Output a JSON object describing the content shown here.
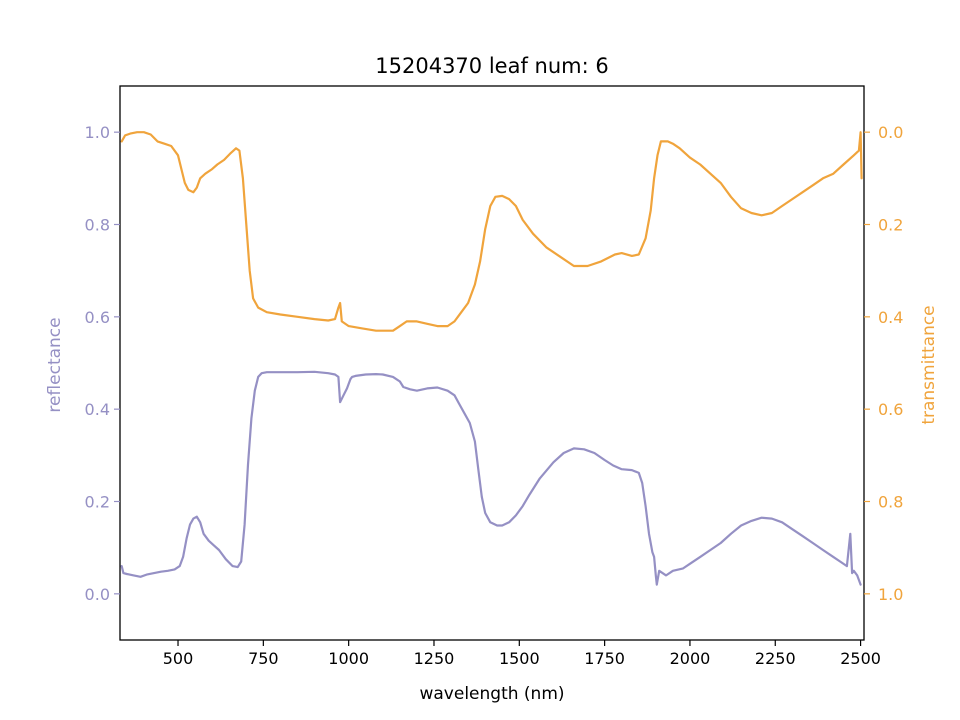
{
  "chart_data": {
    "type": "line",
    "title": "15204370 leaf num: 6",
    "xlabel": "wavelength (nm)",
    "xlim": [
      330,
      2510
    ],
    "xticks": [
      500,
      750,
      1000,
      1250,
      1500,
      1750,
      2000,
      2250,
      2500
    ],
    "grid": false,
    "legend": "none",
    "left_axis": {
      "label": "reflectance",
      "color": "#9590c4",
      "ylim": [
        -0.1,
        1.1
      ],
      "ticks": [
        0.0,
        0.2,
        0.4,
        0.6,
        0.8,
        1.0
      ],
      "tick_labels": [
        "0.0",
        "0.2",
        "0.4",
        "0.6",
        "0.8",
        "1.0"
      ]
    },
    "right_axis": {
      "label": "transmittance",
      "color": "#f0a43c",
      "inverted": true,
      "ylim": [
        1.1,
        -0.1
      ],
      "ticks": [
        0.0,
        0.2,
        0.4,
        0.6,
        0.8,
        1.0
      ],
      "tick_labels": [
        "0.0",
        "0.2",
        "0.4",
        "0.6",
        "0.8",
        "1.0"
      ]
    },
    "series": [
      {
        "axis": "left",
        "color": "#9590c4",
        "points": [
          [
            335,
            0.06
          ],
          [
            340,
            0.045
          ],
          [
            350,
            0.043
          ],
          [
            370,
            0.04
          ],
          [
            390,
            0.037
          ],
          [
            410,
            0.042
          ],
          [
            430,
            0.045
          ],
          [
            450,
            0.048
          ],
          [
            470,
            0.05
          ],
          [
            490,
            0.053
          ],
          [
            505,
            0.06
          ],
          [
            515,
            0.08
          ],
          [
            525,
            0.12
          ],
          [
            535,
            0.15
          ],
          [
            545,
            0.163
          ],
          [
            555,
            0.167
          ],
          [
            565,
            0.155
          ],
          [
            575,
            0.13
          ],
          [
            590,
            0.115
          ],
          [
            605,
            0.105
          ],
          [
            620,
            0.095
          ],
          [
            640,
            0.075
          ],
          [
            660,
            0.06
          ],
          [
            675,
            0.058
          ],
          [
            685,
            0.07
          ],
          [
            695,
            0.15
          ],
          [
            705,
            0.28
          ],
          [
            715,
            0.38
          ],
          [
            725,
            0.44
          ],
          [
            735,
            0.47
          ],
          [
            745,
            0.478
          ],
          [
            760,
            0.48
          ],
          [
            800,
            0.48
          ],
          [
            850,
            0.48
          ],
          [
            900,
            0.481
          ],
          [
            940,
            0.478
          ],
          [
            960,
            0.475
          ],
          [
            970,
            0.47
          ],
          [
            975,
            0.415
          ],
          [
            985,
            0.43
          ],
          [
            995,
            0.445
          ],
          [
            1005,
            0.465
          ],
          [
            1010,
            0.47
          ],
          [
            1020,
            0.472
          ],
          [
            1050,
            0.475
          ],
          [
            1080,
            0.476
          ],
          [
            1100,
            0.475
          ],
          [
            1130,
            0.47
          ],
          [
            1150,
            0.46
          ],
          [
            1160,
            0.448
          ],
          [
            1180,
            0.443
          ],
          [
            1200,
            0.44
          ],
          [
            1230,
            0.445
          ],
          [
            1260,
            0.447
          ],
          [
            1290,
            0.44
          ],
          [
            1310,
            0.43
          ],
          [
            1325,
            0.41
          ],
          [
            1340,
            0.39
          ],
          [
            1355,
            0.37
          ],
          [
            1370,
            0.33
          ],
          [
            1380,
            0.27
          ],
          [
            1390,
            0.21
          ],
          [
            1400,
            0.175
          ],
          [
            1415,
            0.155
          ],
          [
            1435,
            0.148
          ],
          [
            1450,
            0.148
          ],
          [
            1470,
            0.155
          ],
          [
            1490,
            0.17
          ],
          [
            1510,
            0.19
          ],
          [
            1530,
            0.215
          ],
          [
            1560,
            0.25
          ],
          [
            1600,
            0.285
          ],
          [
            1630,
            0.305
          ],
          [
            1660,
            0.315
          ],
          [
            1690,
            0.313
          ],
          [
            1720,
            0.305
          ],
          [
            1750,
            0.29
          ],
          [
            1775,
            0.278
          ],
          [
            1800,
            0.27
          ],
          [
            1830,
            0.268
          ],
          [
            1850,
            0.262
          ],
          [
            1860,
            0.24
          ],
          [
            1870,
            0.19
          ],
          [
            1880,
            0.13
          ],
          [
            1890,
            0.09
          ],
          [
            1895,
            0.08
          ],
          [
            1900,
            0.04
          ],
          [
            1903,
            0.02
          ],
          [
            1910,
            0.05
          ],
          [
            1930,
            0.04
          ],
          [
            1950,
            0.05
          ],
          [
            1980,
            0.055
          ],
          [
            2000,
            0.065
          ],
          [
            2030,
            0.08
          ],
          [
            2060,
            0.095
          ],
          [
            2090,
            0.11
          ],
          [
            2120,
            0.13
          ],
          [
            2150,
            0.148
          ],
          [
            2180,
            0.158
          ],
          [
            2210,
            0.165
          ],
          [
            2240,
            0.163
          ],
          [
            2270,
            0.155
          ],
          [
            2300,
            0.14
          ],
          [
            2330,
            0.125
          ],
          [
            2360,
            0.11
          ],
          [
            2390,
            0.095
          ],
          [
            2420,
            0.08
          ],
          [
            2440,
            0.07
          ],
          [
            2460,
            0.06
          ],
          [
            2470,
            0.13
          ],
          [
            2475,
            0.045
          ],
          [
            2480,
            0.05
          ],
          [
            2490,
            0.04
          ],
          [
            2500,
            0.02
          ]
        ]
      },
      {
        "axis": "right",
        "color": "#f0a43c",
        "points": [
          [
            335,
            0.02
          ],
          [
            345,
            0.007
          ],
          [
            360,
            0.003
          ],
          [
            380,
            0.0
          ],
          [
            400,
            0.0
          ],
          [
            420,
            0.005
          ],
          [
            440,
            0.02
          ],
          [
            460,
            0.025
          ],
          [
            480,
            0.03
          ],
          [
            500,
            0.05
          ],
          [
            510,
            0.08
          ],
          [
            520,
            0.11
          ],
          [
            530,
            0.125
          ],
          [
            545,
            0.13
          ],
          [
            555,
            0.12
          ],
          [
            565,
            0.1
          ],
          [
            580,
            0.09
          ],
          [
            600,
            0.08
          ],
          [
            615,
            0.07
          ],
          [
            635,
            0.06
          ],
          [
            655,
            0.045
          ],
          [
            670,
            0.035
          ],
          [
            680,
            0.04
          ],
          [
            690,
            0.1
          ],
          [
            700,
            0.2
          ],
          [
            710,
            0.3
          ],
          [
            720,
            0.36
          ],
          [
            735,
            0.38
          ],
          [
            760,
            0.39
          ],
          [
            800,
            0.395
          ],
          [
            850,
            0.4
          ],
          [
            900,
            0.405
          ],
          [
            940,
            0.408
          ],
          [
            960,
            0.405
          ],
          [
            970,
            0.38
          ],
          [
            975,
            0.37
          ],
          [
            980,
            0.41
          ],
          [
            1000,
            0.42
          ],
          [
            1040,
            0.425
          ],
          [
            1080,
            0.43
          ],
          [
            1110,
            0.43
          ],
          [
            1130,
            0.43
          ],
          [
            1150,
            0.42
          ],
          [
            1170,
            0.41
          ],
          [
            1200,
            0.41
          ],
          [
            1230,
            0.415
          ],
          [
            1260,
            0.42
          ],
          [
            1290,
            0.42
          ],
          [
            1310,
            0.41
          ],
          [
            1330,
            0.39
          ],
          [
            1350,
            0.37
          ],
          [
            1370,
            0.33
          ],
          [
            1385,
            0.28
          ],
          [
            1400,
            0.21
          ],
          [
            1415,
            0.16
          ],
          [
            1430,
            0.14
          ],
          [
            1450,
            0.138
          ],
          [
            1470,
            0.145
          ],
          [
            1490,
            0.16
          ],
          [
            1510,
            0.19
          ],
          [
            1540,
            0.22
          ],
          [
            1580,
            0.25
          ],
          [
            1620,
            0.27
          ],
          [
            1660,
            0.29
          ],
          [
            1700,
            0.29
          ],
          [
            1740,
            0.28
          ],
          [
            1780,
            0.265
          ],
          [
            1800,
            0.262
          ],
          [
            1830,
            0.268
          ],
          [
            1850,
            0.265
          ],
          [
            1870,
            0.23
          ],
          [
            1885,
            0.17
          ],
          [
            1895,
            0.1
          ],
          [
            1905,
            0.05
          ],
          [
            1915,
            0.02
          ],
          [
            1935,
            0.02
          ],
          [
            1950,
            0.025
          ],
          [
            1970,
            0.035
          ],
          [
            2000,
            0.055
          ],
          [
            2030,
            0.07
          ],
          [
            2060,
            0.09
          ],
          [
            2090,
            0.11
          ],
          [
            2120,
            0.14
          ],
          [
            2150,
            0.165
          ],
          [
            2180,
            0.175
          ],
          [
            2210,
            0.18
          ],
          [
            2240,
            0.175
          ],
          [
            2270,
            0.16
          ],
          [
            2300,
            0.145
          ],
          [
            2330,
            0.13
          ],
          [
            2360,
            0.115
          ],
          [
            2390,
            0.1
          ],
          [
            2420,
            0.09
          ],
          [
            2450,
            0.07
          ],
          [
            2480,
            0.05
          ],
          [
            2495,
            0.04
          ],
          [
            2500,
            0.0
          ],
          [
            2503,
            0.1
          ]
        ]
      }
    ]
  }
}
